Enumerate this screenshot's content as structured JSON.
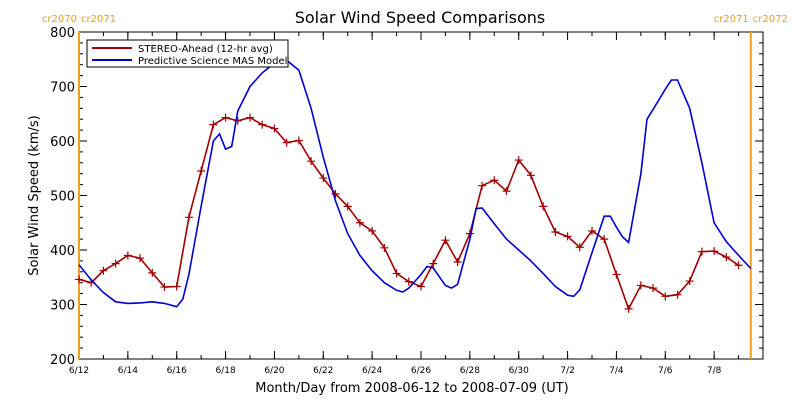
{
  "chart_data": {
    "type": "line",
    "title": "Solar Wind Speed Comparisons",
    "xlabel": "Month/Day from 2008-06-12 to 2008-07-09 (UT)",
    "ylabel": "Solar Wind Speed (km/s)",
    "xlim": [
      "2008-06-12",
      "2008-07-10"
    ],
    "ylim": [
      200,
      800
    ],
    "yticks": [
      200,
      300,
      400,
      500,
      600,
      700,
      800
    ],
    "xticks": [
      {
        "date": "2008-06-12",
        "label": "6/12"
      },
      {
        "date": "2008-06-14",
        "label": "6/14"
      },
      {
        "date": "2008-06-16",
        "label": "6/16"
      },
      {
        "date": "2008-06-18",
        "label": "6/18"
      },
      {
        "date": "2008-06-20",
        "label": "6/20"
      },
      {
        "date": "2008-06-22",
        "label": "6/22"
      },
      {
        "date": "2008-06-24",
        "label": "6/24"
      },
      {
        "date": "2008-06-26",
        "label": "6/26"
      },
      {
        "date": "2008-06-28",
        "label": "6/28"
      },
      {
        "date": "2008-06-30",
        "label": "6/30"
      },
      {
        "date": "2008-07-02",
        "label": "7/2"
      },
      {
        "date": "2008-07-04",
        "label": "7/4"
      },
      {
        "date": "2008-07-06",
        "label": "7/6"
      },
      {
        "date": "2008-07-08",
        "label": "7/8"
      }
    ],
    "legend_position": "top-left",
    "carrington_markers": [
      {
        "date": "2008-06-12",
        "label_left": "cr2070",
        "label_right": "cr2071",
        "color": "#f0a020"
      },
      {
        "date": "2008-07-09 12:00",
        "label_left": "cr2071",
        "label_right": "cr2072",
        "color": "#f0a020"
      }
    ],
    "series": [
      {
        "name": "STEREO-Ahead (12-hr avg)",
        "color": "#a00000",
        "marker": "plus",
        "points": [
          [
            "2008-06-12 00:00",
            346
          ],
          [
            "2008-06-12 12:00",
            340
          ],
          [
            "2008-06-13 00:00",
            362
          ],
          [
            "2008-06-13 12:00",
            375
          ],
          [
            "2008-06-14 00:00",
            390
          ],
          [
            "2008-06-14 12:00",
            385
          ],
          [
            "2008-06-15 00:00",
            358
          ],
          [
            "2008-06-15 12:00",
            332
          ],
          [
            "2008-06-16 00:00",
            333
          ],
          [
            "2008-06-16 12:00",
            460
          ],
          [
            "2008-06-17 00:00",
            545
          ],
          [
            "2008-06-17 12:00",
            630
          ],
          [
            "2008-06-18 00:00",
            643
          ],
          [
            "2008-06-18 12:00",
            637
          ],
          [
            "2008-06-19 00:00",
            643
          ],
          [
            "2008-06-19 12:00",
            630
          ],
          [
            "2008-06-20 00:00",
            623
          ],
          [
            "2008-06-20 12:00",
            597
          ],
          [
            "2008-06-21 00:00",
            601
          ],
          [
            "2008-06-21 12:00",
            563
          ],
          [
            "2008-06-22 00:00",
            532
          ],
          [
            "2008-06-22 12:00",
            503
          ],
          [
            "2008-06-23 00:00",
            480
          ],
          [
            "2008-06-23 12:00",
            450
          ],
          [
            "2008-06-24 00:00",
            435
          ],
          [
            "2008-06-24 12:00",
            404
          ],
          [
            "2008-06-25 00:00",
            357
          ],
          [
            "2008-06-25 12:00",
            342
          ],
          [
            "2008-06-26 00:00",
            333
          ],
          [
            "2008-06-26 12:00",
            375
          ],
          [
            "2008-06-27 00:00",
            418
          ],
          [
            "2008-06-27 12:00",
            378
          ],
          [
            "2008-06-28 00:00",
            430
          ],
          [
            "2008-06-28 12:00",
            518
          ],
          [
            "2008-06-29 00:00",
            528
          ],
          [
            "2008-06-29 12:00",
            508
          ],
          [
            "2008-06-30 00:00",
            565
          ],
          [
            "2008-06-30 12:00",
            537
          ],
          [
            "2008-07-01 00:00",
            480
          ],
          [
            "2008-07-01 12:00",
            433
          ],
          [
            "2008-07-02 00:00",
            425
          ],
          [
            "2008-07-02 12:00",
            405
          ],
          [
            "2008-07-03 00:00",
            435
          ],
          [
            "2008-07-03 12:00",
            420
          ],
          [
            "2008-07-04 00:00",
            355
          ],
          [
            "2008-07-04 12:00",
            292
          ],
          [
            "2008-07-05 00:00",
            335
          ],
          [
            "2008-07-05 12:00",
            330
          ],
          [
            "2008-07-06 00:00",
            315
          ],
          [
            "2008-07-06 12:00",
            318
          ],
          [
            "2008-07-07 00:00",
            343
          ],
          [
            "2008-07-07 12:00",
            397
          ],
          [
            "2008-07-08 00:00",
            398
          ],
          [
            "2008-07-08 12:00",
            387
          ],
          [
            "2008-07-09 00:00",
            372
          ]
        ]
      },
      {
        "name": "Predictive Science MAS Model",
        "color": "#0000d0",
        "marker": "none",
        "points": [
          [
            "2008-06-12 00:00",
            373
          ],
          [
            "2008-06-12 12:00",
            345
          ],
          [
            "2008-06-13 00:00",
            322
          ],
          [
            "2008-06-13 12:00",
            305
          ],
          [
            "2008-06-14 00:00",
            302
          ],
          [
            "2008-06-14 12:00",
            303
          ],
          [
            "2008-06-15 00:00",
            305
          ],
          [
            "2008-06-15 12:00",
            302
          ],
          [
            "2008-06-16 00:00",
            296
          ],
          [
            "2008-06-16 06:00",
            310
          ],
          [
            "2008-06-16 12:00",
            355
          ],
          [
            "2008-06-17 00:00",
            480
          ],
          [
            "2008-06-17 12:00",
            600
          ],
          [
            "2008-06-17 18:00",
            613
          ],
          [
            "2008-06-18 00:00",
            585
          ],
          [
            "2008-06-18 06:00",
            590
          ],
          [
            "2008-06-18 12:00",
            655
          ],
          [
            "2008-06-19 00:00",
            700
          ],
          [
            "2008-06-19 12:00",
            725
          ],
          [
            "2008-06-20 00:00",
            743
          ],
          [
            "2008-06-20 12:00",
            748
          ],
          [
            "2008-06-21 00:00",
            730
          ],
          [
            "2008-06-21 12:00",
            660
          ],
          [
            "2008-06-22 00:00",
            570
          ],
          [
            "2008-06-22 12:00",
            490
          ],
          [
            "2008-06-23 00:00",
            430
          ],
          [
            "2008-06-23 12:00",
            390
          ],
          [
            "2008-06-24 00:00",
            362
          ],
          [
            "2008-06-24 12:00",
            340
          ],
          [
            "2008-06-25 00:00",
            326
          ],
          [
            "2008-06-25 06:00",
            323
          ],
          [
            "2008-06-25 12:00",
            330
          ],
          [
            "2008-06-26 00:00",
            355
          ],
          [
            "2008-06-26 06:00",
            370
          ],
          [
            "2008-06-26 12:00",
            367
          ],
          [
            "2008-06-27 00:00",
            335
          ],
          [
            "2008-06-27 06:00",
            330
          ],
          [
            "2008-06-27 12:00",
            337
          ],
          [
            "2008-06-28 00:00",
            420
          ],
          [
            "2008-06-28 06:00",
            476
          ],
          [
            "2008-06-28 12:00",
            477
          ],
          [
            "2008-06-29 00:00",
            448
          ],
          [
            "2008-06-29 12:00",
            420
          ],
          [
            "2008-06-30 00:00",
            400
          ],
          [
            "2008-06-30 12:00",
            380
          ],
          [
            "2008-07-01 00:00",
            357
          ],
          [
            "2008-07-01 12:00",
            333
          ],
          [
            "2008-07-02 00:00",
            317
          ],
          [
            "2008-07-02 06:00",
            315
          ],
          [
            "2008-07-02 12:00",
            327
          ],
          [
            "2008-07-03 00:00",
            395
          ],
          [
            "2008-07-03 12:00",
            462
          ],
          [
            "2008-07-03 18:00",
            462
          ],
          [
            "2008-07-04 00:00",
            442
          ],
          [
            "2008-07-04 06:00",
            424
          ],
          [
            "2008-07-04 12:00",
            414
          ],
          [
            "2008-07-05 00:00",
            540
          ],
          [
            "2008-07-05 06:00",
            640
          ],
          [
            "2008-07-05 12:00",
            658
          ],
          [
            "2008-07-06 00:00",
            695
          ],
          [
            "2008-07-06 06:00",
            712
          ],
          [
            "2008-07-06 12:00",
            712
          ],
          [
            "2008-07-07 00:00",
            660
          ],
          [
            "2008-07-07 12:00",
            560
          ],
          [
            "2008-07-08 00:00",
            450
          ],
          [
            "2008-07-08 12:00",
            415
          ],
          [
            "2008-07-09 00:00",
            390
          ],
          [
            "2008-07-09 12:00",
            366
          ]
        ]
      }
    ]
  }
}
